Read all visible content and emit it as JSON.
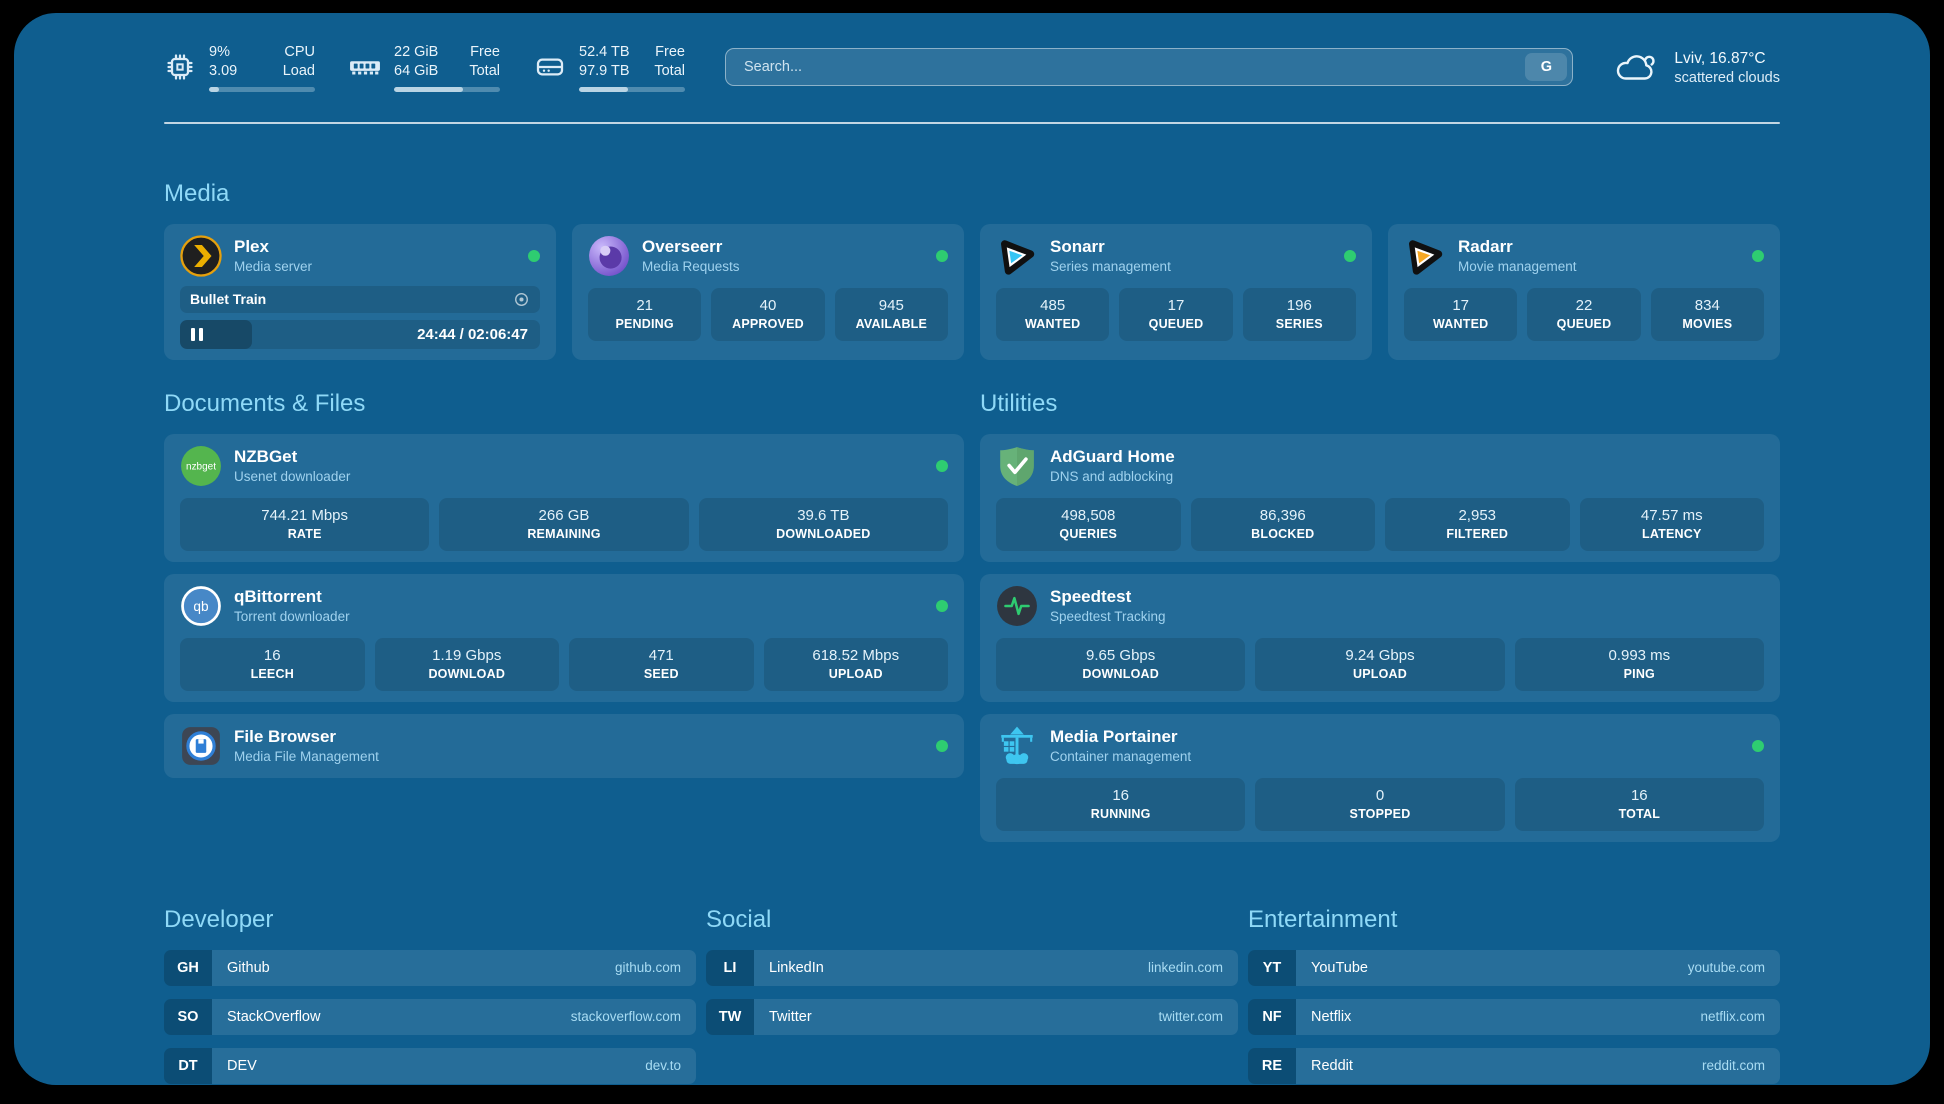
{
  "theme": {
    "background": "#000000",
    "panel": "#0f5e8f",
    "section_title_color": "#8fd9f7",
    "status_online_color": "#2ecc71",
    "url_color": "#a8dcf3"
  },
  "topbar": {
    "stats": [
      {
        "icon": "cpu-chip-icon",
        "values": [
          "9%",
          "3.09"
        ],
        "labels": [
          "CPU",
          "Load"
        ],
        "percent": 9
      },
      {
        "icon": "ram-icon",
        "values": [
          "22 GiB",
          "64 GiB"
        ],
        "labels": [
          "Free",
          "Total"
        ],
        "percent": 65
      },
      {
        "icon": "hard-drive-icon",
        "values": [
          "52.4 TB",
          "97.9 TB"
        ],
        "labels": [
          "Free",
          "Total"
        ],
        "percent": 46
      }
    ],
    "search": {
      "placeholder": "Search...",
      "engine_button": "G"
    },
    "weather": {
      "icon": "cloud-icon",
      "location_temp": "Lviv, 16.87°C",
      "condition": "scattered clouds"
    }
  },
  "sections": {
    "media": {
      "title": "Media"
    },
    "documents": {
      "title": "Documents & Files"
    },
    "utilities": {
      "title": "Utilities"
    },
    "developer": {
      "title": "Developer"
    },
    "social": {
      "title": "Social"
    },
    "entertainment": {
      "title": "Entertainment"
    }
  },
  "apps": {
    "plex": {
      "icon": "plex-icon",
      "name": "Plex",
      "description": "Media server",
      "online": true,
      "now_playing": {
        "title": "Bullet Train",
        "time_display": "24:44 / 02:06:47",
        "progress_percent": 20
      }
    },
    "overseerr": {
      "icon": "overseerr-icon",
      "name": "Overseerr",
      "description": "Media Requests",
      "online": true,
      "stats": [
        {
          "value": "21",
          "label": "PENDING"
        },
        {
          "value": "40",
          "label": "APPROVED"
        },
        {
          "value": "945",
          "label": "AVAILABLE"
        }
      ]
    },
    "sonarr": {
      "icon": "sonarr-icon",
      "name": "Sonarr",
      "description": "Series management",
      "online": true,
      "stats": [
        {
          "value": "485",
          "label": "WANTED"
        },
        {
          "value": "17",
          "label": "QUEUED"
        },
        {
          "value": "196",
          "label": "SERIES"
        }
      ]
    },
    "radarr": {
      "icon": "radarr-icon",
      "name": "Radarr",
      "description": "Movie management",
      "online": true,
      "stats": [
        {
          "value": "17",
          "label": "WANTED"
        },
        {
          "value": "22",
          "label": "QUEUED"
        },
        {
          "value": "834",
          "label": "MOVIES"
        }
      ]
    },
    "nzbget": {
      "icon": "nzbget-icon",
      "name": "NZBGet",
      "description": "Usenet downloader",
      "online": true,
      "stats": [
        {
          "value": "744.21 Mbps",
          "label": "RATE"
        },
        {
          "value": "266 GB",
          "label": "REMAINING"
        },
        {
          "value": "39.6 TB",
          "label": "DOWNLOADED"
        }
      ]
    },
    "qbittorrent": {
      "icon": "qbittorrent-icon",
      "name": "qBittorrent",
      "description": "Torrent downloader",
      "online": true,
      "stats": [
        {
          "value": "16",
          "label": "LEECH"
        },
        {
          "value": "1.19 Gbps",
          "label": "DOWNLOAD"
        },
        {
          "value": "471",
          "label": "SEED"
        },
        {
          "value": "618.52 Mbps",
          "label": "UPLOAD"
        }
      ]
    },
    "filebrowser": {
      "icon": "file-browser-icon",
      "name": "File Browser",
      "description": "Media File Management",
      "online": true
    },
    "adguard": {
      "icon": "adguard-shield-icon",
      "name": "AdGuard Home",
      "description": "DNS and adblocking",
      "stats": [
        {
          "value": "498,508",
          "label": "QUERIES"
        },
        {
          "value": "86,396",
          "label": "BLOCKED"
        },
        {
          "value": "2,953",
          "label": "FILTERED"
        },
        {
          "value": "47.57 ms",
          "label": "LATENCY"
        }
      ]
    },
    "speedtest": {
      "icon": "speedtest-icon",
      "name": "Speedtest",
      "description": "Speedtest Tracking",
      "stats": [
        {
          "value": "9.65 Gbps",
          "label": "DOWNLOAD"
        },
        {
          "value": "9.24 Gbps",
          "label": "UPLOAD"
        },
        {
          "value": "0.993 ms",
          "label": "PING"
        }
      ]
    },
    "portainer": {
      "icon": "portainer-crane-icon",
      "name": "Media Portainer",
      "description": "Container management",
      "online": true,
      "stats": [
        {
          "value": "16",
          "label": "RUNNING"
        },
        {
          "value": "0",
          "label": "STOPPED"
        },
        {
          "value": "16",
          "label": "TOTAL"
        }
      ]
    }
  },
  "bookmarks": {
    "developer": [
      {
        "abbr": "GH",
        "name": "Github",
        "url": "github.com"
      },
      {
        "abbr": "SO",
        "name": "StackOverflow",
        "url": "stackoverflow.com"
      },
      {
        "abbr": "DT",
        "name": "DEV",
        "url": "dev.to"
      }
    ],
    "social": [
      {
        "abbr": "LI",
        "name": "LinkedIn",
        "url": "linkedin.com"
      },
      {
        "abbr": "TW",
        "name": "Twitter",
        "url": "twitter.com"
      }
    ],
    "entertainment": [
      {
        "abbr": "YT",
        "name": "YouTube",
        "url": "youtube.com"
      },
      {
        "abbr": "NF",
        "name": "Netflix",
        "url": "netflix.com"
      },
      {
        "abbr": "RE",
        "name": "Reddit",
        "url": "reddit.com"
      }
    ]
  }
}
